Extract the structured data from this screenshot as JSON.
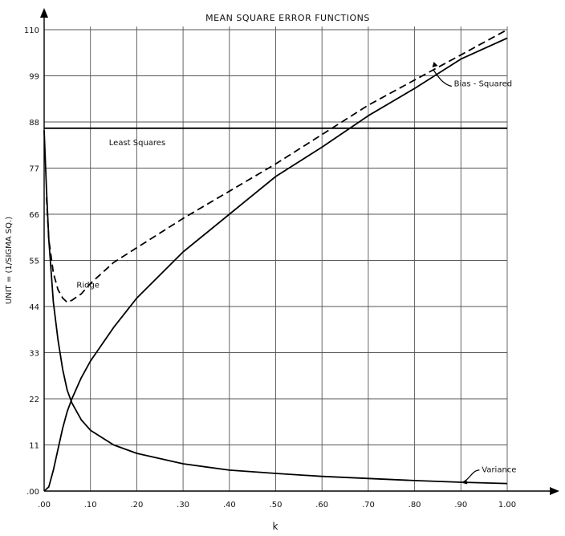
{
  "chart_data": {
    "type": "line",
    "title": "MEAN SQUARE ERROR FUNCTIONS",
    "xlabel": "k",
    "ylabel": "UNIT = (1/SIGMA SQ.)",
    "xlim": [
      0,
      1.0
    ],
    "ylim": [
      0,
      110
    ],
    "x_ticks": [
      ".00",
      ".10",
      ".20",
      ".30",
      ".40",
      ".50",
      ".60",
      ".70",
      ".80",
      ".90",
      "1.00"
    ],
    "y_ticks": [
      ".00",
      "11",
      "22",
      "33",
      "44",
      "55",
      "66",
      "77",
      "88",
      "99",
      "110"
    ],
    "grid": true,
    "series": [
      {
        "name": "Least Squares",
        "style": "solid",
        "x": [
          0.0,
          1.0
        ],
        "y": [
          86.5,
          86.5
        ]
      },
      {
        "name": "Ridge",
        "style": "dashed",
        "x": [
          0.005,
          0.01,
          0.02,
          0.03,
          0.04,
          0.05,
          0.06,
          0.08,
          0.1,
          0.15,
          0.2,
          0.3,
          0.4,
          0.5,
          0.6,
          0.7,
          0.8,
          0.9,
          1.0
        ],
        "y": [
          70,
          60,
          52,
          48,
          46,
          45,
          45.5,
          47,
          49.5,
          54.5,
          58,
          65,
          71.5,
          78,
          85,
          92,
          98,
          104,
          110
        ]
      },
      {
        "name": "Bias - Squared",
        "style": "solid",
        "x": [
          0.0,
          0.01,
          0.02,
          0.03,
          0.04,
          0.05,
          0.06,
          0.08,
          0.1,
          0.15,
          0.2,
          0.3,
          0.4,
          0.5,
          0.6,
          0.7,
          0.8,
          0.9,
          1.0
        ],
        "y": [
          0,
          1,
          5,
          10,
          15,
          19,
          22,
          27,
          31,
          39,
          46,
          57,
          66,
          75,
          82,
          89.5,
          96,
          103,
          108
        ]
      },
      {
        "name": "Variance",
        "style": "solid",
        "x": [
          0.0,
          0.005,
          0.01,
          0.02,
          0.03,
          0.04,
          0.05,
          0.06,
          0.08,
          0.1,
          0.15,
          0.2,
          0.3,
          0.4,
          0.5,
          0.6,
          0.7,
          0.8,
          0.9,
          1.0
        ],
        "y": [
          86,
          72,
          60,
          45,
          36,
          29,
          24,
          21,
          17,
          14.5,
          11,
          9,
          6.5,
          5,
          4.2,
          3.5,
          3,
          2.5,
          2.1,
          1.8
        ]
      }
    ],
    "annotations": [
      {
        "text": "Least Squares",
        "x": 0.14,
        "y": 82.5
      },
      {
        "text": "Ridge",
        "x": 0.07,
        "y": 48.5
      },
      {
        "text": "Bias - Squared",
        "x": 0.885,
        "y": 96.5
      },
      {
        "text": "Variance",
        "x": 0.945,
        "y": 4.5
      }
    ]
  }
}
